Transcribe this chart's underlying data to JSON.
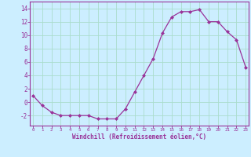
{
  "x": [
    0,
    1,
    2,
    3,
    4,
    5,
    6,
    7,
    8,
    9,
    10,
    11,
    12,
    13,
    14,
    15,
    16,
    17,
    18,
    19,
    20,
    21,
    22,
    23
  ],
  "y": [
    1,
    -0.5,
    -1.5,
    -2.0,
    -2.0,
    -2.0,
    -2.0,
    -2.5,
    -2.5,
    -2.5,
    -1.0,
    1.5,
    4.0,
    6.5,
    10.3,
    12.7,
    13.5,
    13.5,
    13.8,
    12.0,
    12.0,
    10.5,
    9.3,
    5.2
  ],
  "line_color": "#993399",
  "marker": "D",
  "marker_size": 2,
  "bg_color": "#cceeff",
  "grid_color": "#aaddcc",
  "xlabel": "Windchill (Refroidissement éolien,°C)",
  "xlabel_color": "#993399",
  "tick_color": "#993399",
  "ylim": [
    -3.5,
    15
  ],
  "yticks": [
    -2,
    0,
    2,
    4,
    6,
    8,
    10,
    12,
    14
  ],
  "xticks": [
    0,
    1,
    2,
    3,
    4,
    5,
    6,
    7,
    8,
    9,
    10,
    11,
    12,
    13,
    14,
    15,
    16,
    17,
    18,
    19,
    20,
    21,
    22,
    23
  ],
  "xlim": [
    -0.3,
    23.3
  ]
}
